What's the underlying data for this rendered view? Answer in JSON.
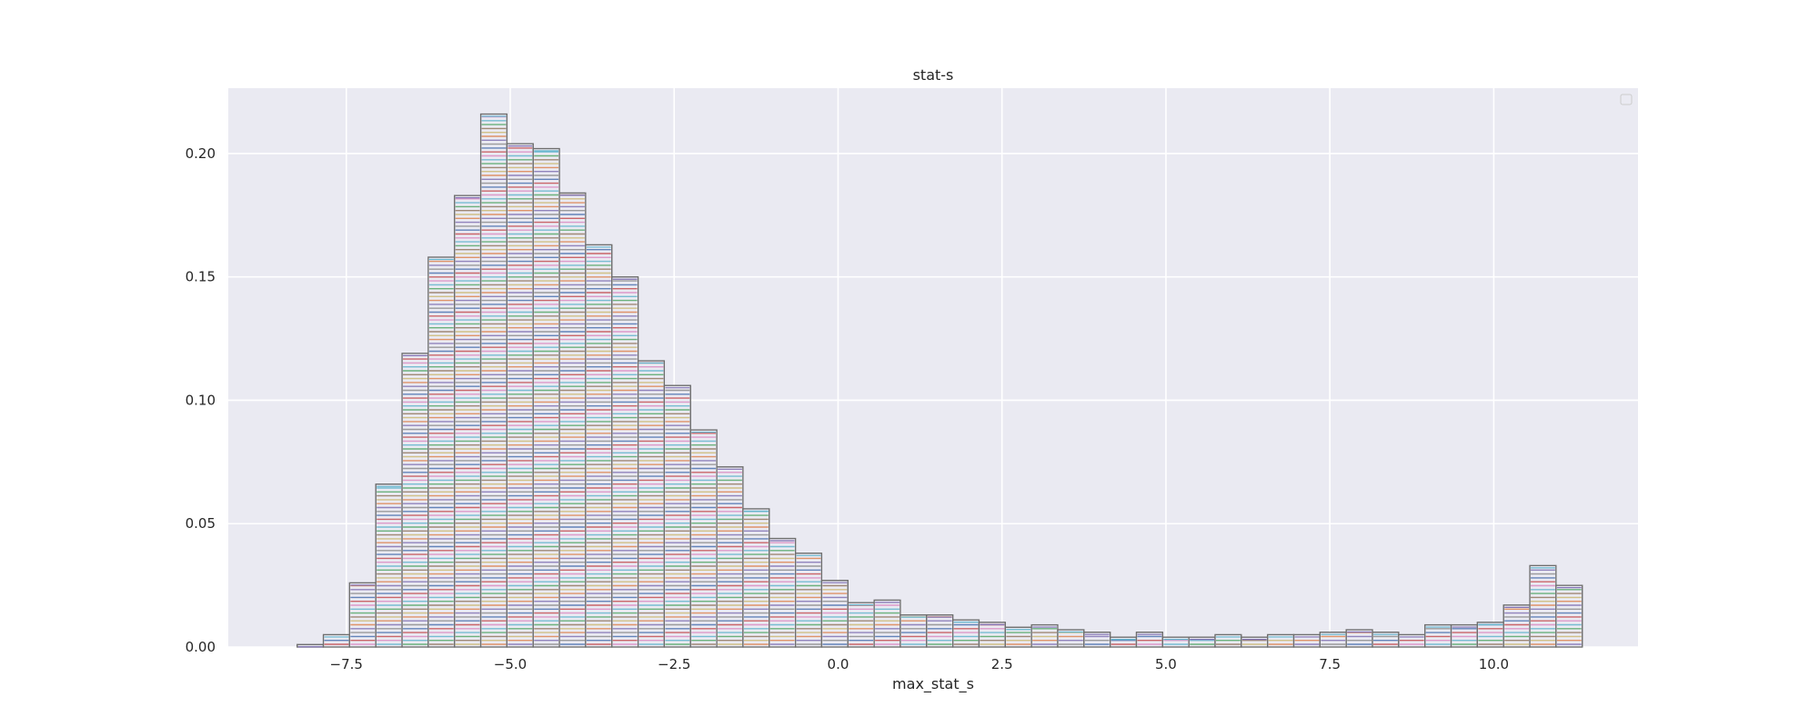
{
  "chart_data": {
    "type": "bar",
    "title": "stat-s",
    "xlabel": "max_stat_s",
    "ylabel": "",
    "xlim": [
      -9.3,
      12.2
    ],
    "ylim": [
      0,
      0.2265
    ],
    "grid": true,
    "legend_placement": "top-right",
    "colors": {
      "plot_bg": "#eaeaf2",
      "grid": "#ffffff",
      "bar_edge": "#6e6e6e",
      "palette": [
        "#4c72b0",
        "#dd8452",
        "#55a868",
        "#c44e52",
        "#8172b3",
        "#937860",
        "#da8bc3",
        "#8c8c8c",
        "#ccb974",
        "#64b5cd"
      ]
    },
    "xticks": [
      {
        "value": -7.5,
        "label": "−7.5"
      },
      {
        "value": -5.0,
        "label": "−5.0"
      },
      {
        "value": -2.5,
        "label": "−2.5"
      },
      {
        "value": 0.0,
        "label": "0.0"
      },
      {
        "value": 2.5,
        "label": "2.5"
      },
      {
        "value": 5.0,
        "label": "5.0"
      },
      {
        "value": 7.5,
        "label": "7.5"
      },
      {
        "value": 10.0,
        "label": "10.0"
      }
    ],
    "yticks": [
      {
        "value": 0.0,
        "label": "0.00"
      },
      {
        "value": 0.05,
        "label": "0.05"
      },
      {
        "value": 0.1,
        "label": "0.10"
      },
      {
        "value": 0.15,
        "label": "0.15"
      },
      {
        "value": 0.2,
        "label": "0.20"
      }
    ],
    "bin_edges": [
      -8.25,
      -7.85,
      -7.45,
      -7.05,
      -6.65,
      -6.25,
      -5.85,
      -5.45,
      -5.05,
      -4.65,
      -4.25,
      -3.85,
      -3.45,
      -3.05,
      -2.65,
      -2.25,
      -1.85,
      -1.45,
      -1.05,
      -0.65,
      -0.25,
      0.15,
      0.55,
      0.95,
      1.35,
      1.75,
      2.15,
      2.55,
      2.95,
      3.35,
      3.75,
      4.15,
      4.55,
      4.95,
      5.35,
      5.75,
      6.15,
      6.55,
      6.95,
      7.35,
      7.75,
      8.15,
      8.55,
      8.95,
      9.35,
      9.75,
      10.15,
      10.55,
      10.95,
      11.35
    ],
    "values": [
      0.001,
      0.005,
      0.026,
      0.066,
      0.119,
      0.158,
      0.183,
      0.216,
      0.204,
      0.202,
      0.184,
      0.163,
      0.15,
      0.116,
      0.106,
      0.088,
      0.073,
      0.056,
      0.044,
      0.038,
      0.027,
      0.018,
      0.019,
      0.013,
      0.013,
      0.011,
      0.01,
      0.008,
      0.009,
      0.007,
      0.006,
      0.004,
      0.006,
      0.004,
      0.004,
      0.005,
      0.004,
      0.005,
      0.005,
      0.006,
      0.007,
      0.006,
      0.005,
      0.009,
      0.009,
      0.01,
      0.017,
      0.033,
      0.025
    ]
  }
}
